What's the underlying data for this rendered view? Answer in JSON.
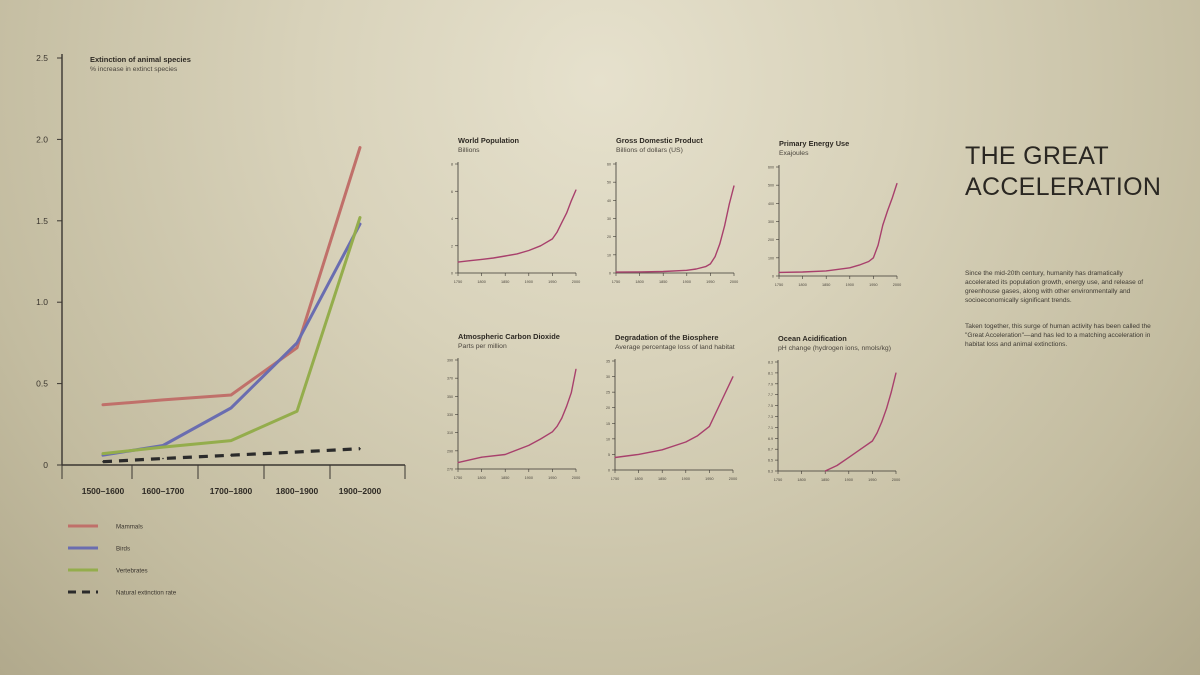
{
  "panel": {
    "title": "THE GREAT\nACCELERATION",
    "paragraphs": [
      "Since the mid-20th century, humanity has dramatically accelerated its population growth, energy use, and release of greenhouse gases, along with other environmentally and socioeconomically significant trends.",
      "Taken together, this surge of human activity has been called the \"Great Acceleration\"—and has led to a matching acceleration in habitat loss and animal extinctions."
    ]
  },
  "colors": {
    "mammals": "#c0706a",
    "birds": "#6a6db0",
    "vertebrates": "#94ad4c",
    "natural": "#2b2b2b",
    "small_line": "#a8406c",
    "axis": "#3a3631"
  },
  "chart_data": [
    {
      "id": "extinction",
      "type": "line",
      "title": "Extinction of animal species",
      "subtitle": "% increase in extinct species",
      "categories": [
        "1500–1600",
        "1600–1700",
        "1700–1800",
        "1800–1900",
        "1900–2000"
      ],
      "ylim": [
        0,
        2.5
      ],
      "yticks": [
        "0",
        "0.5",
        "1.0",
        "1.5",
        "2.0",
        "2.5"
      ],
      "series": [
        {
          "name": "Mammals",
          "key": "mammals",
          "values": [
            0.37,
            0.4,
            0.43,
            0.72,
            1.95
          ]
        },
        {
          "name": "Birds",
          "key": "birds",
          "values": [
            0.06,
            0.12,
            0.35,
            0.75,
            1.48
          ]
        },
        {
          "name": "Vertebrates",
          "key": "vertebrates",
          "values": [
            0.07,
            0.11,
            0.15,
            0.33,
            1.52
          ]
        },
        {
          "name": "Natural extinction rate",
          "key": "natural",
          "dashed": true,
          "values": [
            0.02,
            0.04,
            0.06,
            0.08,
            0.1
          ]
        }
      ],
      "legend_position": "bottom-left"
    },
    {
      "id": "population",
      "type": "line",
      "title": "World Population",
      "subtitle": "Billions",
      "xlim": [
        1750,
        2000
      ],
      "xticks": [
        "1750",
        "1800",
        "1850",
        "1900",
        "1950",
        "2000"
      ],
      "ylim": [
        0,
        8
      ],
      "yticks": [
        "0",
        "2",
        "4",
        "6",
        "8"
      ],
      "x": [
        1750,
        1775,
        1800,
        1825,
        1850,
        1875,
        1900,
        1925,
        1950,
        1960,
        1970,
        1980,
        1990,
        2000
      ],
      "values": [
        0.8,
        0.9,
        1.0,
        1.1,
        1.25,
        1.4,
        1.65,
        2.0,
        2.5,
        3.0,
        3.7,
        4.4,
        5.3,
        6.1
      ]
    },
    {
      "id": "gdp",
      "type": "line",
      "title": "Gross Domestic Product",
      "subtitle": "Billions of dollars (US)",
      "xlim": [
        1750,
        2000
      ],
      "xticks": [
        "1750",
        "1800",
        "1850",
        "1900",
        "1950",
        "2000"
      ],
      "ylim": [
        0,
        60
      ],
      "yticks": [
        "0",
        "10",
        "20",
        "30",
        "40",
        "50",
        "60"
      ],
      "x": [
        1750,
        1800,
        1850,
        1900,
        1920,
        1940,
        1950,
        1960,
        1970,
        1980,
        1990,
        2000
      ],
      "values": [
        0.5,
        0.6,
        0.8,
        1.5,
        2.2,
        3.5,
        5.0,
        9.0,
        16.0,
        26.0,
        38.0,
        48.0
      ]
    },
    {
      "id": "energy",
      "type": "line",
      "title": "Primary Energy Use",
      "subtitle": "Exajoules",
      "xlim": [
        1750,
        2000
      ],
      "xticks": [
        "1750",
        "1800",
        "1850",
        "1900",
        "1950",
        "2000"
      ],
      "ylim": [
        0,
        600
      ],
      "yticks": [
        "0",
        "100",
        "200",
        "300",
        "400",
        "500",
        "600"
      ],
      "x": [
        1750,
        1800,
        1850,
        1900,
        1920,
        1940,
        1950,
        1960,
        1970,
        1980,
        1990,
        2000
      ],
      "values": [
        20,
        22,
        28,
        45,
        60,
        80,
        100,
        170,
        280,
        360,
        430,
        510
      ]
    },
    {
      "id": "co2",
      "type": "line",
      "title": "Atmospheric Carbon Dioxide",
      "subtitle": "Parts per million",
      "xlim": [
        1750,
        2000
      ],
      "xticks": [
        "1750",
        "1800",
        "1850",
        "1900",
        "1950",
        "2000"
      ],
      "ylim": [
        270,
        390
      ],
      "yticks": [
        "270",
        "290",
        "310",
        "330",
        "350",
        "370",
        "390"
      ],
      "x": [
        1750,
        1800,
        1850,
        1900,
        1925,
        1950,
        1960,
        1970,
        1980,
        1990,
        2000
      ],
      "values": [
        277,
        283,
        286,
        296,
        303,
        311,
        317,
        326,
        339,
        354,
        380
      ]
    },
    {
      "id": "biosphere",
      "type": "line",
      "title": "Degradation of the Biosphere",
      "subtitle": "Average percentage loss of land habitat",
      "xlim": [
        1750,
        2000
      ],
      "xticks": [
        "1750",
        "1800",
        "1850",
        "1900",
        "1950",
        "2000"
      ],
      "ylim": [
        0,
        35
      ],
      "yticks": [
        "0",
        "5",
        "10",
        "15",
        "20",
        "25",
        "30",
        "35"
      ],
      "x": [
        1750,
        1800,
        1850,
        1900,
        1925,
        1950,
        1975,
        2000
      ],
      "values": [
        4,
        5,
        6.5,
        9,
        11,
        14,
        22,
        30
      ]
    },
    {
      "id": "acidification",
      "type": "line",
      "title": "Ocean Acidification",
      "subtitle": "pH change (hydrogen ions, nmols/kg)",
      "xlim": [
        1750,
        2000
      ],
      "xticks": [
        "1750",
        "1800",
        "1850",
        "1900",
        "1950",
        "2000"
      ],
      "ylim": [
        6.3,
        8.3
      ],
      "yticks": [
        "6.3",
        "6.5",
        "6.7",
        "6.9",
        "7.1",
        "7.3",
        "7.5",
        "7.7",
        "7.9",
        "8.1",
        "8.3"
      ],
      "x": [
        1850,
        1875,
        1900,
        1925,
        1950,
        1960,
        1970,
        1980,
        1990,
        2000
      ],
      "values": [
        6.3,
        6.4,
        6.55,
        6.7,
        6.85,
        7.0,
        7.2,
        7.45,
        7.75,
        8.1
      ]
    }
  ]
}
